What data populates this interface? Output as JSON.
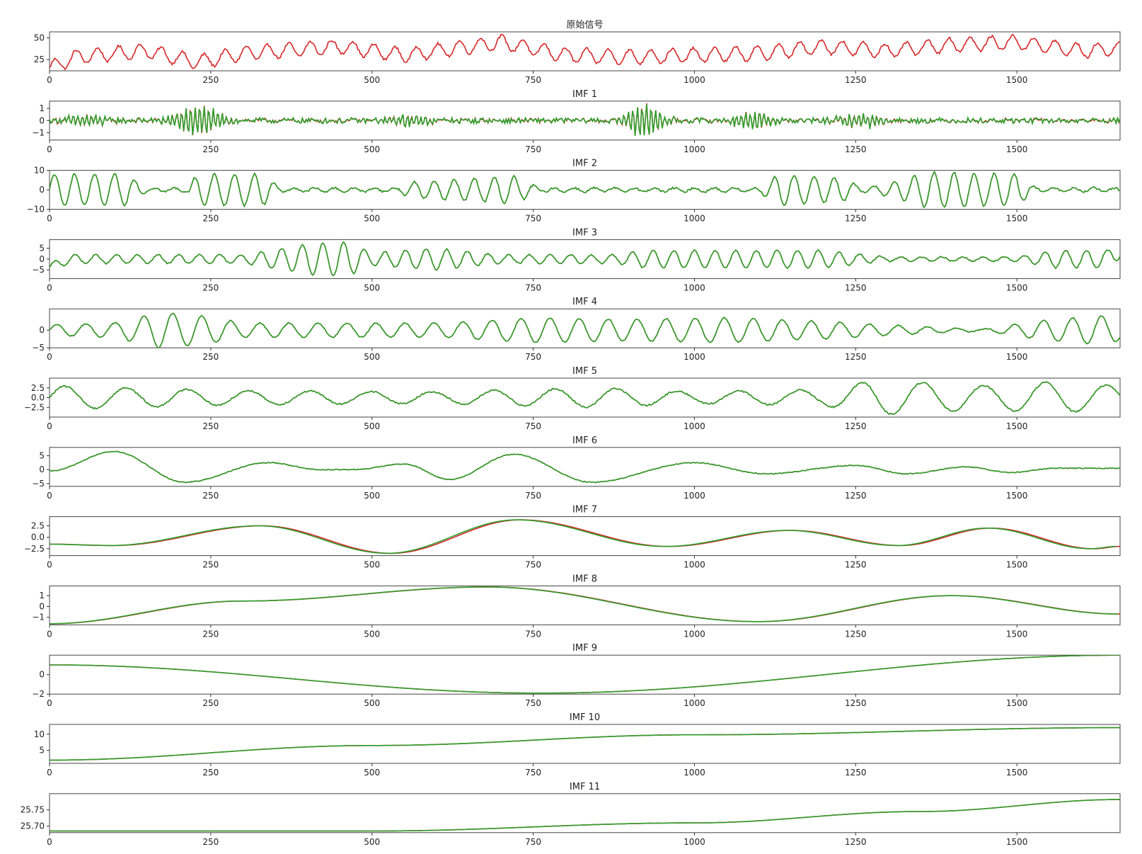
{
  "colors": {
    "original": "#d62728",
    "reconstructed": "#2ca02c",
    "frame": "#444444"
  },
  "chart_data": [
    {
      "type": "line",
      "title": "原始信号",
      "xlim": [
        0,
        1660
      ],
      "ylim": [
        12,
        57
      ],
      "yticks": [
        25,
        50
      ],
      "yticklabels": [
        "25",
        "50"
      ],
      "xticks": [
        0,
        250,
        500,
        750,
        1000,
        1250,
        1500
      ],
      "xticklabels": [
        "0",
        "250",
        "500",
        "750",
        "1000",
        "1250",
        "1500"
      ],
      "gen": {
        "trend": [
          [
            0,
            15
          ],
          [
            40,
            28
          ],
          [
            150,
            35
          ],
          [
            230,
            22
          ],
          [
            300,
            32
          ],
          [
            450,
            40
          ],
          [
            550,
            30
          ],
          [
            700,
            45
          ],
          [
            800,
            30
          ],
          [
            900,
            28
          ],
          [
            1100,
            32
          ],
          [
            1200,
            40
          ],
          [
            1300,
            35
          ],
          [
            1400,
            42
          ],
          [
            1500,
            45
          ],
          [
            1600,
            35
          ],
          [
            1660,
            38
          ]
        ],
        "waves": [
          [
            33,
            8
          ]
        ],
        "noise": 1.5
      },
      "series": [
        {
          "color": "#d62728",
          "offset": 0
        }
      ]
    },
    {
      "type": "line",
      "title": "IMF 1",
      "xlim": [
        0,
        1660
      ],
      "ylim": [
        -1.6,
        1.6
      ],
      "yticks": [
        -1,
        0,
        1
      ],
      "yticklabels": [
        "−1",
        "0",
        "1"
      ],
      "xticks": [
        0,
        250,
        500,
        750,
        1000,
        1250,
        1500
      ],
      "xticklabels": [
        "0",
        "250",
        "500",
        "750",
        "1000",
        "1250",
        "1500"
      ],
      "gen": {
        "trend": [
          [
            0,
            0
          ],
          [
            1660,
            0
          ]
        ],
        "waves": [
          [
            4,
            0.15
          ]
        ],
        "noise": 0.2,
        "bursts": [
          [
            230,
            40,
            1.2
          ],
          [
            920,
            30,
            1.4
          ],
          [
            1090,
            30,
            0.8
          ],
          [
            60,
            40,
            0.4
          ],
          [
            560,
            40,
            0.5
          ],
          [
            1260,
            40,
            0.5
          ]
        ]
      },
      "series": [
        {
          "color": "#d62728",
          "offset": 0
        },
        {
          "color": "#2ca02c",
          "offset": 0.15
        }
      ]
    },
    {
      "type": "line",
      "title": "IMF 2",
      "xlim": [
        0,
        1660
      ],
      "ylim": [
        -10,
        10
      ],
      "yticks": [
        -10,
        0,
        10
      ],
      "yticklabels": [
        "−10",
        "0",
        "10"
      ],
      "xticks": [
        0,
        250,
        500,
        750,
        1000,
        1250,
        1500
      ],
      "xticklabels": [
        "0",
        "250",
        "500",
        "750",
        "1000",
        "1250",
        "1500"
      ],
      "gen": {
        "trend": [
          [
            0,
            0
          ],
          [
            1660,
            0
          ]
        ],
        "waves": [
          [
            31,
            1
          ]
        ],
        "noise": 0.5,
        "env": [
          [
            0,
            8
          ],
          [
            120,
            8
          ],
          [
            150,
            1
          ],
          [
            210,
            1
          ],
          [
            230,
            8
          ],
          [
            330,
            8
          ],
          [
            360,
            1
          ],
          [
            540,
            1
          ],
          [
            560,
            4
          ],
          [
            720,
            7
          ],
          [
            760,
            1
          ],
          [
            1100,
            1
          ],
          [
            1130,
            8
          ],
          [
            1230,
            6
          ],
          [
            1260,
            1
          ],
          [
            1300,
            3
          ],
          [
            1360,
            9
          ],
          [
            1500,
            8
          ],
          [
            1530,
            1
          ],
          [
            1660,
            1
          ]
        ]
      },
      "series": [
        {
          "color": "#d62728",
          "offset": 0
        },
        {
          "color": "#2ca02c",
          "offset": 0
        }
      ]
    },
    {
      "type": "line",
      "title": "IMF 3",
      "xlim": [
        0,
        1660
      ],
      "ylim": [
        -9,
        9
      ],
      "yticks": [
        -5,
        0,
        5
      ],
      "yticklabels": [
        "−5",
        "0",
        "5"
      ],
      "xticks": [
        0,
        250,
        500,
        750,
        1000,
        1250,
        1500
      ],
      "xticklabels": [
        "0",
        "250",
        "500",
        "750",
        "1000",
        "1250",
        "1500"
      ],
      "gen": {
        "trend": [
          [
            0,
            -4
          ],
          [
            30,
            0
          ],
          [
            1640,
            0
          ],
          [
            1660,
            4
          ]
        ],
        "waves": [
          [
            32,
            1
          ]
        ],
        "noise": 0.3,
        "env": [
          [
            0,
            2
          ],
          [
            300,
            2
          ],
          [
            400,
            7
          ],
          [
            460,
            8
          ],
          [
            500,
            3
          ],
          [
            600,
            5
          ],
          [
            700,
            2
          ],
          [
            880,
            2
          ],
          [
            920,
            4
          ],
          [
            1200,
            4
          ],
          [
            1300,
            1
          ],
          [
            1500,
            1
          ],
          [
            1560,
            4
          ],
          [
            1660,
            4
          ]
        ]
      },
      "series": [
        {
          "color": "#d62728",
          "offset": 0
        },
        {
          "color": "#2ca02c",
          "offset": 0
        }
      ]
    },
    {
      "type": "line",
      "title": "IMF 4",
      "xlim": [
        0,
        1660
      ],
      "ylim": [
        -5,
        6
      ],
      "yticks": [
        -5,
        0
      ],
      "yticklabels": [
        "−5",
        "0"
      ],
      "xticks": [
        0,
        250,
        500,
        750,
        1000,
        1250,
        1500
      ],
      "xticklabels": [
        "0",
        "250",
        "500",
        "750",
        "1000",
        "1250",
        "1500"
      ],
      "gen": {
        "trend": [
          [
            0,
            0
          ],
          [
            1660,
            0
          ]
        ],
        "waves": [
          [
            45,
            1
          ]
        ],
        "noise": 0.15,
        "env": [
          [
            0,
            1.5
          ],
          [
            100,
            2
          ],
          [
            170,
            5
          ],
          [
            240,
            4
          ],
          [
            300,
            2
          ],
          [
            600,
            2
          ],
          [
            760,
            3.5
          ],
          [
            900,
            3
          ],
          [
            1050,
            3.5
          ],
          [
            1200,
            2.5
          ],
          [
            1350,
            1
          ],
          [
            1450,
            0.3
          ],
          [
            1550,
            3
          ],
          [
            1630,
            4
          ],
          [
            1660,
            3
          ]
        ]
      },
      "series": [
        {
          "color": "#d62728",
          "offset": 0
        },
        {
          "color": "#2ca02c",
          "offset": 0
        }
      ]
    },
    {
      "type": "line",
      "title": "IMF 5",
      "xlim": [
        0,
        1660
      ],
      "ylim": [
        -5,
        5
      ],
      "yticks": [
        -2.5,
        0,
        2.5
      ],
      "yticklabels": [
        "−2.5",
        "0.0",
        "2.5"
      ],
      "xticks": [
        0,
        250,
        500,
        750,
        1000,
        1250,
        1500
      ],
      "xticklabels": [
        "0",
        "250",
        "500",
        "750",
        "1000",
        "1250",
        "1500"
      ],
      "gen": {
        "trend": [
          [
            0,
            0
          ],
          [
            1660,
            0
          ]
        ],
        "waves": [
          [
            95,
            1
          ]
        ],
        "noise": 0.2,
        "env": [
          [
            0,
            3
          ],
          [
            300,
            1.8
          ],
          [
            600,
            1.5
          ],
          [
            850,
            2.5
          ],
          [
            1000,
            1.5
          ],
          [
            1200,
            2
          ],
          [
            1280,
            4.5
          ],
          [
            1450,
            3
          ],
          [
            1550,
            4
          ],
          [
            1660,
            3
          ]
        ]
      },
      "series": [
        {
          "color": "#d62728",
          "offset": 0
        },
        {
          "color": "#2ca02c",
          "offset": 0
        }
      ]
    },
    {
      "type": "line",
      "title": "IMF 6",
      "xlim": [
        0,
        1660
      ],
      "ylim": [
        -6,
        8
      ],
      "yticks": [
        -5,
        0,
        5
      ],
      "yticklabels": [
        "−5",
        "0",
        "5"
      ],
      "xticks": [
        0,
        250,
        500,
        750,
        1000,
        1250,
        1500
      ],
      "xticklabels": [
        "0",
        "250",
        "500",
        "750",
        "1000",
        "1250",
        "1500"
      ],
      "gen": {
        "pts": [
          [
            0,
            -0.5
          ],
          [
            100,
            6.5
          ],
          [
            210,
            -4.5
          ],
          [
            340,
            2.5
          ],
          [
            420,
            0
          ],
          [
            470,
            0
          ],
          [
            550,
            2
          ],
          [
            620,
            -3.5
          ],
          [
            720,
            5.5
          ],
          [
            840,
            -4.5
          ],
          [
            1000,
            2.5
          ],
          [
            1110,
            -1.5
          ],
          [
            1250,
            1.5
          ],
          [
            1330,
            -1.5
          ],
          [
            1420,
            1
          ],
          [
            1490,
            -1
          ],
          [
            1560,
            0.5
          ],
          [
            1660,
            0.5
          ]
        ],
        "noise": 0.15
      },
      "series": [
        {
          "color": "#d62728",
          "offset": 0
        },
        {
          "color": "#2ca02c",
          "offset": 0
        }
      ]
    },
    {
      "type": "line",
      "title": "IMF 7",
      "xlim": [
        0,
        1660
      ],
      "ylim": [
        -4,
        4.5
      ],
      "yticks": [
        -2.5,
        0,
        2.5
      ],
      "yticklabels": [
        "−2.5",
        "0.0",
        "2.5"
      ],
      "xticks": [
        0,
        250,
        500,
        750,
        1000,
        1250,
        1500
      ],
      "xticklabels": [
        "0",
        "250",
        "500",
        "750",
        "1000",
        "1250",
        "1500"
      ],
      "gen": {
        "pts": [
          [
            0,
            -1.5
          ],
          [
            100,
            -1.8
          ],
          [
            330,
            2.5
          ],
          [
            530,
            -3.5
          ],
          [
            730,
            3.8
          ],
          [
            960,
            -2
          ],
          [
            1150,
            1.5
          ],
          [
            1320,
            -1.8
          ],
          [
            1460,
            2
          ],
          [
            1620,
            -2.5
          ],
          [
            1660,
            -2
          ]
        ],
        "noise": 0
      },
      "series": [
        {
          "color": "#d62728",
          "offset": 0
        },
        {
          "color": "#2ca02c",
          "offset": -6
        }
      ]
    },
    {
      "type": "line",
      "title": "IMF 8",
      "xlim": [
        0,
        1660
      ],
      "ylim": [
        -1.7,
        1.9
      ],
      "yticks": [
        -1,
        0,
        1
      ],
      "yticklabels": [
        "−1",
        "0",
        "1"
      ],
      "xticks": [
        0,
        250,
        500,
        750,
        1000,
        1250,
        1500
      ],
      "xticklabels": [
        "0",
        "250",
        "500",
        "750",
        "1000",
        "1250",
        "1500"
      ],
      "gen": {
        "pts": [
          [
            0,
            -1.6
          ],
          [
            300,
            0.5
          ],
          [
            680,
            1.8
          ],
          [
            1100,
            -1.4
          ],
          [
            1400,
            1
          ],
          [
            1660,
            -0.7
          ]
        ],
        "noise": 0
      },
      "series": [
        {
          "color": "#d62728",
          "offset": 0
        },
        {
          "color": "#2ca02c",
          "offset": -3
        }
      ]
    },
    {
      "type": "line",
      "title": "IMF 9",
      "xlim": [
        0,
        1660
      ],
      "ylim": [
        -2,
        2
      ],
      "yticks": [
        -2,
        0
      ],
      "yticklabels": [
        "−2",
        "0"
      ],
      "xticks": [
        0,
        250,
        500,
        750,
        1000,
        1250,
        1500
      ],
      "xticklabels": [
        "0",
        "250",
        "500",
        "750",
        "1000",
        "1250",
        "1500"
      ],
      "gen": {
        "pts": [
          [
            0,
            1
          ],
          [
            760,
            -1.9
          ],
          [
            1660,
            2
          ]
        ],
        "noise": 0
      },
      "series": [
        {
          "color": "#d62728",
          "offset": 0
        },
        {
          "color": "#2ca02c",
          "offset": 0
        }
      ]
    },
    {
      "type": "line",
      "title": "IMF 10",
      "xlim": [
        0,
        1660
      ],
      "ylim": [
        1,
        13
      ],
      "yticks": [
        5,
        10
      ],
      "yticklabels": [
        "5",
        "10"
      ],
      "xticks": [
        0,
        250,
        500,
        750,
        1000,
        1250,
        1500
      ],
      "xticklabels": [
        "0",
        "250",
        "500",
        "750",
        "1000",
        "1250",
        "1500"
      ],
      "gen": {
        "pts": [
          [
            0,
            2
          ],
          [
            500,
            6.5
          ],
          [
            1000,
            9.8
          ],
          [
            1660,
            12
          ]
        ],
        "noise": 0
      },
      "series": [
        {
          "color": "#d62728",
          "offset": 0
        },
        {
          "color": "#2ca02c",
          "offset": 0
        }
      ]
    },
    {
      "type": "line",
      "title": "IMF 11",
      "xlim": [
        0,
        1660
      ],
      "ylim": [
        25.68,
        25.8
      ],
      "yticks": [
        25.7,
        25.75
      ],
      "yticklabels": [
        "25.70",
        "25.75"
      ],
      "xticks": [
        0,
        250,
        500,
        750,
        1000,
        1250,
        1500
      ],
      "xticklabels": [
        "0",
        "250",
        "500",
        "750",
        "1000",
        "1250",
        "1500"
      ],
      "gen": {
        "pts": [
          [
            0,
            25.685
          ],
          [
            500,
            25.685
          ],
          [
            1000,
            25.71
          ],
          [
            1350,
            25.745
          ],
          [
            1660,
            25.782
          ]
        ],
        "noise": 0
      },
      "series": [
        {
          "color": "#d62728",
          "offset": 0
        },
        {
          "color": "#2ca02c",
          "offset": 0
        }
      ]
    }
  ]
}
